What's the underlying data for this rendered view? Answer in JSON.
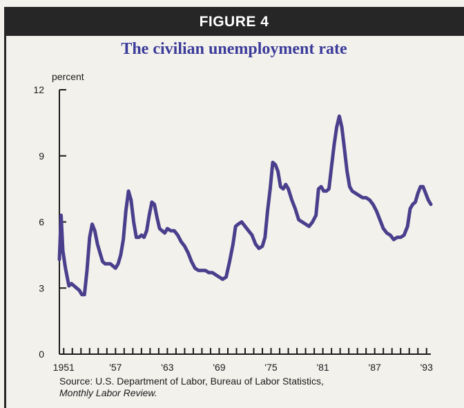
{
  "figure_label": "FIGURE 4",
  "chart_data": {
    "type": "line",
    "title": "The civilian unemployment rate",
    "ylabel": "percent",
    "xlabel": "",
    "ylim": [
      0,
      12
    ],
    "xlim": [
      1950.5,
      1993.5
    ],
    "yticks": [
      0,
      3,
      6,
      9,
      12
    ],
    "xtick_labels": [
      {
        "value": 1951,
        "label": "1951"
      },
      {
        "value": 1957,
        "label": "'57"
      },
      {
        "value": 1963,
        "label": "'63"
      },
      {
        "value": 1969,
        "label": "'69"
      },
      {
        "value": 1975,
        "label": "'75"
      },
      {
        "value": 1981,
        "label": "'81"
      },
      {
        "value": 1987,
        "label": "'87"
      },
      {
        "value": 1993,
        "label": "'93"
      }
    ],
    "grid": false,
    "line_color": "#4a3f8c",
    "series": [
      {
        "x": [
          1950.5,
          1950.7,
          1950.9,
          1951.2,
          1951.6,
          1951.9,
          1952.2,
          1952.5,
          1952.8,
          1953.1,
          1953.4,
          1953.7,
          1954.0,
          1954.3,
          1954.6,
          1954.9,
          1955.2,
          1955.5,
          1955.8,
          1956.1,
          1956.4,
          1956.7,
          1957.0,
          1957.3,
          1957.6,
          1957.9,
          1958.2,
          1958.5,
          1958.8,
          1959.1,
          1959.4,
          1959.7,
          1960.0,
          1960.3,
          1960.6,
          1960.9,
          1961.2,
          1961.5,
          1961.8,
          1962.1,
          1962.4,
          1962.7,
          1963.0,
          1963.4,
          1963.8,
          1964.2,
          1964.6,
          1965.0,
          1965.4,
          1965.8,
          1966.2,
          1966.6,
          1967.0,
          1967.4,
          1967.8,
          1968.2,
          1968.6,
          1969.0,
          1969.4,
          1969.8,
          1970.2,
          1970.6,
          1970.9,
          1971.2,
          1971.6,
          1972.0,
          1972.4,
          1972.8,
          1973.2,
          1973.6,
          1974.0,
          1974.3,
          1974.6,
          1974.9,
          1975.2,
          1975.5,
          1975.8,
          1976.1,
          1976.4,
          1976.7,
          1977.0,
          1977.4,
          1977.8,
          1978.2,
          1978.6,
          1979.0,
          1979.4,
          1979.8,
          1980.2,
          1980.5,
          1980.8,
          1981.1,
          1981.4,
          1981.7,
          1982.0,
          1982.3,
          1982.6,
          1982.9,
          1983.2,
          1983.5,
          1983.8,
          1984.1,
          1984.4,
          1984.8,
          1985.2,
          1985.6,
          1986.0,
          1986.4,
          1986.8,
          1987.2,
          1987.6,
          1988.0,
          1988.4,
          1988.8,
          1989.2,
          1989.6,
          1990.0,
          1990.4,
          1990.8,
          1991.1,
          1991.4,
          1991.7,
          1992.0,
          1992.3,
          1992.6,
          1992.9,
          1993.2,
          1993.5
        ],
        "values": [
          4.3,
          6.3,
          4.7,
          3.9,
          3.1,
          3.2,
          3.1,
          3.0,
          2.9,
          2.7,
          2.7,
          3.8,
          5.3,
          5.9,
          5.6,
          5.0,
          4.6,
          4.2,
          4.1,
          4.1,
          4.1,
          4.0,
          3.9,
          4.1,
          4.5,
          5.2,
          6.5,
          7.4,
          7.0,
          6.0,
          5.3,
          5.3,
          5.4,
          5.3,
          5.6,
          6.3,
          6.9,
          6.8,
          6.2,
          5.7,
          5.6,
          5.5,
          5.7,
          5.6,
          5.6,
          5.4,
          5.1,
          4.9,
          4.6,
          4.2,
          3.9,
          3.8,
          3.8,
          3.8,
          3.7,
          3.7,
          3.6,
          3.5,
          3.4,
          3.5,
          4.2,
          5.0,
          5.8,
          5.9,
          6.0,
          5.8,
          5.6,
          5.4,
          5.0,
          4.8,
          4.9,
          5.3,
          6.5,
          7.5,
          8.7,
          8.6,
          8.3,
          7.6,
          7.5,
          7.7,
          7.5,
          7.0,
          6.6,
          6.1,
          6.0,
          5.9,
          5.8,
          6.0,
          6.3,
          7.5,
          7.6,
          7.4,
          7.4,
          7.5,
          8.5,
          9.5,
          10.3,
          10.8,
          10.3,
          9.3,
          8.3,
          7.6,
          7.4,
          7.3,
          7.2,
          7.1,
          7.1,
          7.0,
          6.8,
          6.5,
          6.1,
          5.7,
          5.5,
          5.4,
          5.2,
          5.3,
          5.3,
          5.4,
          5.8,
          6.6,
          6.8,
          6.9,
          7.3,
          7.6,
          7.6,
          7.3,
          7.0,
          6.8
        ]
      }
    ]
  },
  "source": {
    "line1": "Source: U.S. Department of Labor, Bureau of Labor Statistics,",
    "line2": "Monthly Labor Review."
  }
}
